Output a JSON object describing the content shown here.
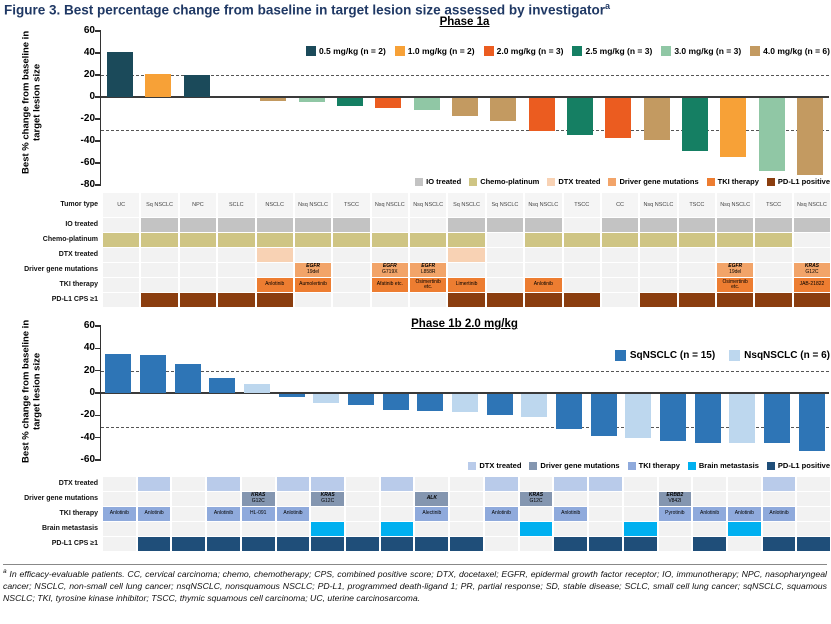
{
  "header": {
    "text": "Figure 3. Best percentage change from baseline in target lesion size assessed by investigator",
    "sup": "a"
  },
  "chart_data": [
    {
      "type": "bar",
      "title": "Phase 1a",
      "ylabel": "Best % change from baseline in target lesion size",
      "ylim": [
        -80,
        60
      ],
      "yticks": [
        60,
        40,
        20,
        0,
        -20,
        -40,
        -60,
        -80
      ],
      "ref_lines": [
        20,
        -30
      ],
      "legend_position": "top-right-inside",
      "grid_off": true,
      "groups": [
        {
          "label": "0.5 mg/kg (n = 2)",
          "color": "#1b4a5a"
        },
        {
          "label": "1.0 mg/kg (n = 2)",
          "color": "#f7a137"
        },
        {
          "label": "2.0 mg/kg (n = 3)",
          "color": "#eb5c20"
        },
        {
          "label": "2.5 mg/kg (n = 3)",
          "color": "#157f63"
        },
        {
          "label": "3.0 mg/kg (n = 3)",
          "color": "#90c7a5"
        },
        {
          "label": "4.0 mg/kg (n = 6)",
          "color": "#c39a61"
        }
      ],
      "bars": [
        {
          "v": 41,
          "g": 0
        },
        {
          "v": 21,
          "g": 1
        },
        {
          "v": 20,
          "g": 0
        },
        {
          "v": 0,
          "g": 5
        },
        {
          "v": -3,
          "g": 5
        },
        {
          "v": -4,
          "g": 4
        },
        {
          "v": -7,
          "g": 3
        },
        {
          "v": -9,
          "g": 2
        },
        {
          "v": -11,
          "g": 4
        },
        {
          "v": -16,
          "g": 5
        },
        {
          "v": -21,
          "g": 5
        },
        {
          "v": -30,
          "g": 2
        },
        {
          "v": -34,
          "g": 3
        },
        {
          "v": -36,
          "g": 2
        },
        {
          "v": -38,
          "g": 5
        },
        {
          "v": -48,
          "g": 3
        },
        {
          "v": -54,
          "g": 1
        },
        {
          "v": -66,
          "g": 4
        },
        {
          "v": -70,
          "g": 5
        }
      ],
      "grid": {
        "rows": [
          {
            "label": "Tumor type",
            "type": "text",
            "values": [
              "UC",
              "Sq NSCLC",
              "NPC",
              "SCLC",
              "NSCLC",
              "Nsq NSCLC",
              "TSCC",
              "Nsq NSCLC",
              "Nsq NSCLC",
              "Sq NSCLC",
              "Sq NSCLC",
              "Nsq NSCLC",
              "TSCC",
              "CC",
              "Nsq NSCLC",
              "TSCC",
              "Nsq NSCLC",
              "TSCC",
              "Nsq NSCLC"
            ]
          },
          {
            "label": "IO treated",
            "type": "flag",
            "color": "#c3c3c3",
            "values": [
              0,
              1,
              1,
              1,
              1,
              1,
              1,
              0,
              0,
              1,
              1,
              1,
              0,
              1,
              1,
              1,
              1,
              1,
              1
            ]
          },
          {
            "label": "Chemo-platinum",
            "type": "flag",
            "color": "#cfc584",
            "values": [
              1,
              1,
              1,
              1,
              1,
              1,
              1,
              1,
              1,
              1,
              0,
              1,
              1,
              1,
              1,
              1,
              1,
              1,
              0
            ]
          },
          {
            "label": "DTX treated",
            "type": "flag",
            "color": "#f8d2b4",
            "values": [
              0,
              0,
              0,
              0,
              1,
              0,
              0,
              0,
              0,
              1,
              0,
              0,
              0,
              0,
              0,
              0,
              0,
              0,
              0
            ]
          },
          {
            "label": "Driver gene mutations",
            "type": "gene",
            "color": "#f2a469",
            "values": [
              null,
              null,
              null,
              null,
              null,
              {
                "gene": "EGFR",
                "variant": "19del"
              },
              null,
              {
                "gene": "EGFR",
                "variant": "G719X"
              },
              {
                "gene": "EGFR",
                "variant": "L858R"
              },
              null,
              null,
              null,
              null,
              null,
              null,
              null,
              {
                "gene": "EGFR",
                "variant": "19del"
              },
              null,
              {
                "gene": "KRAS",
                "variant": "G12C"
              }
            ]
          },
          {
            "label": "TKI therapy",
            "type": "drug",
            "color": "#ed7d31",
            "values": [
              null,
              null,
              null,
              null,
              "Anlotinib",
              "Aumolertinib",
              null,
              "Afatinib etc.",
              "Osimertinib etc.",
              "Limertinib",
              null,
              "Anlotinib",
              null,
              null,
              null,
              null,
              "Osimertinib etc.",
              null,
              "JAB-21822"
            ]
          },
          {
            "label": "PD-L1 CPS ≥1",
            "type": "flag",
            "color": "#8b3e0f",
            "values": [
              0,
              1,
              1,
              1,
              1,
              0,
              0,
              0,
              0,
              1,
              1,
              1,
              1,
              0,
              1,
              1,
              1,
              1,
              1
            ]
          }
        ],
        "legend": [
          {
            "label": "IO treated",
            "color": "#c3c3c3"
          },
          {
            "label": "Chemo-platinum",
            "color": "#cfc584"
          },
          {
            "label": "DTX treated",
            "color": "#f8d2b4"
          },
          {
            "label": "Driver gene mutations",
            "color": "#f2a469"
          },
          {
            "label": "TKI therapy",
            "color": "#ed7d31"
          },
          {
            "label": "PD-L1 positive",
            "color": "#8b3e0f"
          }
        ]
      }
    },
    {
      "type": "bar",
      "title": "Phase 1b 2.0 mg/kg",
      "ylabel": "Best % change from baseline in target lesion size",
      "ylim": [
        -60,
        60
      ],
      "yticks": [
        60,
        40,
        20,
        0,
        -20,
        -40,
        -60
      ],
      "ref_lines": [
        20,
        -30
      ],
      "legend_position": "top-right-inside",
      "grid_off": true,
      "groups": [
        {
          "label": "SqNSCLC (n = 15)",
          "color": "#2e75b6"
        },
        {
          "label": "NsqNSCLC (n = 6)",
          "color": "#bdd7ee"
        }
      ],
      "bars": [
        {
          "v": 35,
          "g": 0
        },
        {
          "v": 34,
          "g": 0
        },
        {
          "v": 26,
          "g": 0
        },
        {
          "v": 13,
          "g": 0
        },
        {
          "v": 8,
          "g": 1
        },
        {
          "v": -3,
          "g": 0
        },
        {
          "v": -8,
          "g": 1
        },
        {
          "v": -10,
          "g": 0
        },
        {
          "v": -14,
          "g": 0
        },
        {
          "v": -15,
          "g": 0
        },
        {
          "v": -16,
          "g": 1
        },
        {
          "v": -19,
          "g": 0
        },
        {
          "v": -21,
          "g": 1
        },
        {
          "v": -31,
          "g": 0
        },
        {
          "v": -38,
          "g": 0
        },
        {
          "v": -39,
          "g": 1
        },
        {
          "v": -42,
          "g": 0
        },
        {
          "v": -44,
          "g": 0
        },
        {
          "v": -44,
          "g": 1
        },
        {
          "v": -44,
          "g": 0
        },
        {
          "v": -51,
          "g": 0
        }
      ],
      "grid": {
        "rows": [
          {
            "label": "DTX treated",
            "type": "flag",
            "color": "#b9cbea",
            "values": [
              0,
              1,
              0,
              1,
              0,
              1,
              1,
              0,
              1,
              0,
              0,
              1,
              0,
              1,
              1,
              0,
              0,
              0,
              0,
              1,
              0
            ]
          },
          {
            "label": "Driver gene mutations",
            "type": "gene",
            "color": "#8496b0",
            "values": [
              null,
              null,
              null,
              null,
              {
                "gene": "KRAS",
                "variant": "G12C"
              },
              null,
              {
                "gene": "KRAS",
                "variant": "G12C"
              },
              null,
              null,
              {
                "gene": "ALK",
                "variant": ""
              },
              null,
              null,
              {
                "gene": "KRAS",
                "variant": "G12C"
              },
              null,
              null,
              null,
              {
                "gene": "ERBB2",
                "variant": "V842I"
              },
              null,
              null,
              null,
              null
            ]
          },
          {
            "label": "TKI therapy",
            "type": "drug",
            "color": "#8faadc",
            "values": [
              "Anlotinib",
              "Anlotinib",
              null,
              "Anlotinib",
              "HL-091",
              "Anlotinib",
              null,
              null,
              null,
              "Alectinib",
              null,
              "Anlotinib",
              null,
              "Anlotinib",
              null,
              null,
              "Pyrotinib",
              "Anlotinib",
              "Anlotinib",
              "Anlotinib",
              null
            ]
          },
          {
            "label": "Brain metastasis",
            "type": "flag",
            "color": "#00b0f0",
            "values": [
              0,
              0,
              0,
              0,
              0,
              0,
              1,
              0,
              1,
              0,
              0,
              0,
              1,
              0,
              0,
              1,
              0,
              0,
              1,
              0,
              0
            ]
          },
          {
            "label": "PD-L1 CPS ≥1",
            "type": "flag",
            "color": "#1f4e79",
            "values": [
              0,
              1,
              1,
              1,
              1,
              1,
              1,
              1,
              1,
              1,
              1,
              0,
              0,
              1,
              1,
              1,
              0,
              1,
              0,
              1,
              1
            ]
          }
        ],
        "legend": [
          {
            "label": "DTX treated",
            "color": "#b9cbea"
          },
          {
            "label": "Driver gene mutations",
            "color": "#8496b0"
          },
          {
            "label": "TKI therapy",
            "color": "#8faadc"
          },
          {
            "label": "Brain metastasis",
            "color": "#00b0f0"
          },
          {
            "label": "PD-L1 positive",
            "color": "#1f4e79"
          }
        ]
      }
    }
  ],
  "footnote": {
    "marker": "a",
    "text": " In efficacy-evaluable patients. CC, cervical carcinoma; chemo, chemotherapy; CPS, combined positive score; DTX, docetaxel; EGFR, epidermal growth factor receptor; IO, immunotherapy; NPC, nasopharyngeal cancer; NSCLC, non-small cell lung cancer; nsqNSCLC, nonsquamous NSCLC; PD-L1, programmed death-ligand 1; PR, partial response; SD, stable disease; SCLC, small cell lung cancer; sqNSCLC, squamous NSCLC; TKI, tyrosine kinase inhibitor; TSCC, thymic squamous cell carcinoma; UC, uterine carcinosarcoma."
  }
}
